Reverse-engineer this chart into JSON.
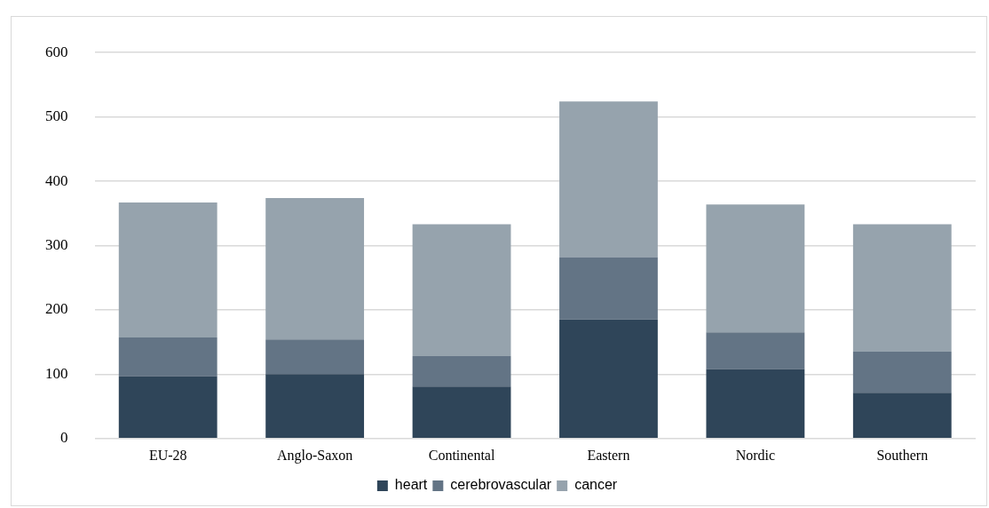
{
  "chart_data": {
    "type": "bar",
    "stacked": true,
    "categories": [
      "EU-28",
      "Anglo-Saxon",
      "Continental",
      "Eastern",
      "Nordic",
      "Southern"
    ],
    "series": [
      {
        "name": "heart",
        "color": "#2f4559",
        "values": [
          97,
          100,
          81,
          185,
          108,
          71
        ]
      },
      {
        "name": "cerebrovascular",
        "color": "#637485",
        "values": [
          60,
          54,
          47,
          97,
          57,
          64
        ]
      },
      {
        "name": "cancer",
        "color": "#96a3ad",
        "values": [
          210,
          220,
          205,
          242,
          199,
          198
        ]
      }
    ],
    "ylim": [
      0,
      600
    ],
    "yticks": [
      0,
      100,
      200,
      300,
      400,
      500,
      600
    ],
    "grid": "y",
    "legend": "bottom"
  }
}
